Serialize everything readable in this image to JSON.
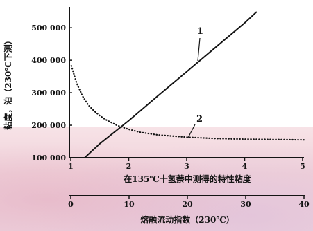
{
  "colors": {
    "background_top": "#ffffff",
    "background_lower": "#f0d2da",
    "ink": "#141414"
  },
  "chart_data": {
    "type": "line",
    "title": "",
    "ylabel": "粘度，泊（230℃下测）",
    "ylim": [
      100000,
      560000
    ],
    "ytick_values": [
      100000,
      200000,
      300000,
      400000,
      500000
    ],
    "yticks": [
      "100 000",
      "200 000",
      "300 000",
      "400 000",
      "500 000"
    ],
    "x_axes": [
      {
        "label": "在135℃十氢萘中测得的特性粘度",
        "lim": [
          1,
          5
        ],
        "tick_values": [
          1,
          2,
          3,
          4,
          5
        ],
        "ticks": [
          "1",
          "2",
          "3",
          "4",
          "5"
        ]
      },
      {
        "label": "熔融流动指数（230℃）",
        "lim": [
          0,
          40
        ],
        "tick_values": [
          0,
          10,
          20,
          30,
          40
        ],
        "ticks": [
          "0",
          "10",
          "20",
          "30",
          "40"
        ]
      }
    ],
    "series": [
      {
        "name": "1",
        "x_axis": 0,
        "style": "solid",
        "color": "#141414",
        "points": [
          [
            1.24,
            100000
          ],
          [
            1.5,
            143000
          ],
          [
            2.0,
            214000
          ],
          [
            2.5,
            290000
          ],
          [
            3.0,
            365000
          ],
          [
            3.5,
            440000
          ],
          [
            4.0,
            515000
          ],
          [
            4.2,
            548000
          ]
        ]
      },
      {
        "name": "2",
        "x_axis": 1,
        "style": "dotted",
        "color": "#141414",
        "points": [
          [
            0.1,
            383000
          ],
          [
            1,
            330000
          ],
          [
            2,
            290000
          ],
          [
            3,
            262000
          ],
          [
            4,
            244000
          ],
          [
            5,
            229000
          ],
          [
            6,
            217000
          ],
          [
            8,
            199000
          ],
          [
            10,
            187000
          ],
          [
            12,
            178000
          ],
          [
            15,
            170000
          ],
          [
            20,
            163000
          ],
          [
            25,
            159000
          ],
          [
            30,
            157000
          ],
          [
            35,
            156000
          ],
          [
            40,
            155000
          ]
        ]
      }
    ],
    "grid": false,
    "legend": "none"
  }
}
